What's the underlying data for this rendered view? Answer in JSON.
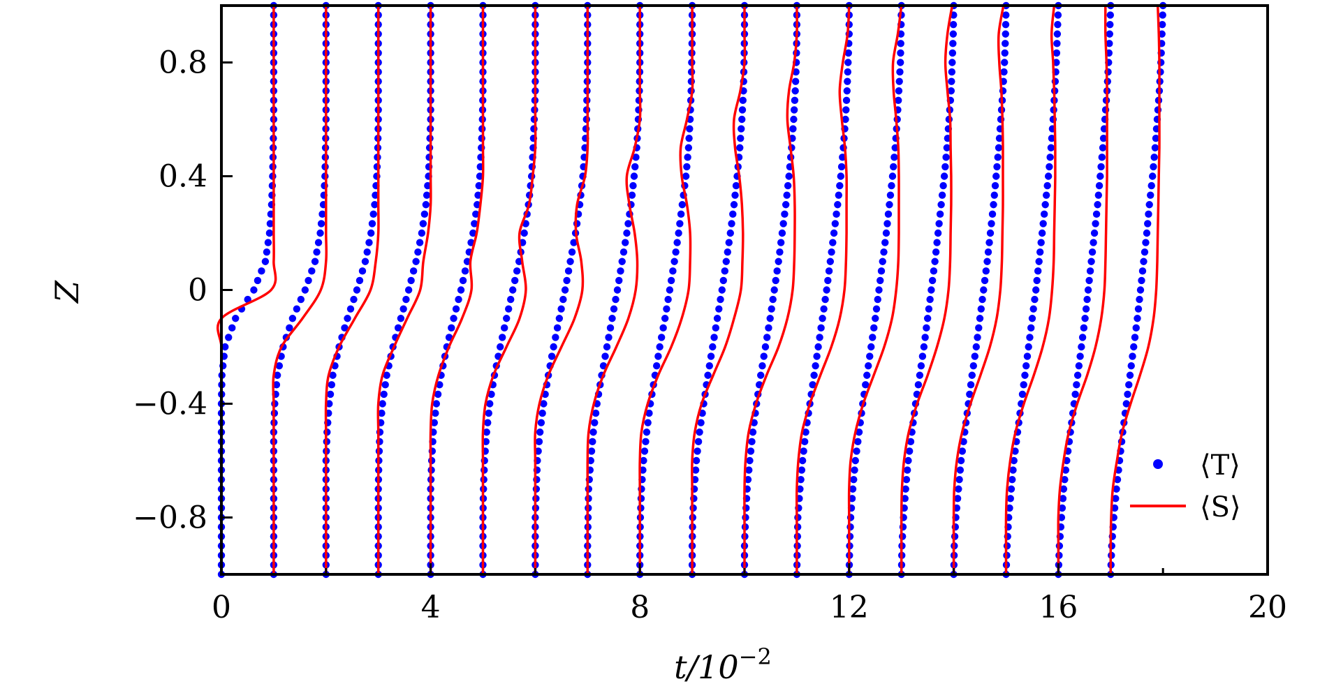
{
  "chart_data": {
    "type": "line",
    "xlabel": "t/10",
    "xlabel_exp": "−2",
    "ylabel": "Z",
    "xlim": [
      0,
      20
    ],
    "ylim": [
      -1,
      1
    ],
    "x_ticks": [
      0,
      4,
      8,
      12,
      16,
      20
    ],
    "x_tick_labels": [
      "0",
      "4",
      "8",
      "12",
      "16",
      "20"
    ],
    "y_ticks": [
      -0.8,
      -0.4,
      0,
      0.4,
      0.8
    ],
    "y_tick_labels": [
      "−0.8",
      "−0.4",
      "0",
      "0.4",
      "0.8"
    ],
    "grid": false,
    "legend_position": "bottom-right",
    "profile_scale": 1,
    "profile_offsets": [
      0,
      1,
      2,
      3,
      4,
      5,
      6,
      7,
      8,
      9,
      10,
      11,
      12,
      13,
      14,
      15,
      16,
      17
    ],
    "z_samples": [
      -1,
      -0.9,
      -0.8,
      -0.7,
      -0.6,
      -0.5,
      -0.4,
      -0.3,
      -0.2,
      -0.1,
      0,
      0.1,
      0.2,
      0.3,
      0.4,
      0.5,
      0.6,
      0.7,
      0.8,
      0.9,
      1
    ],
    "series": [
      {
        "name": "⟨T⟩",
        "style": "dots",
        "color": "#0000ff",
        "profiles": [
          [
            0,
            0,
            0,
            0,
            0,
            0,
            0,
            0.01,
            0.07,
            0.27,
            0.62,
            0.84,
            0.92,
            0.96,
            0.98,
            0.99,
            1,
            1,
            1,
            1,
            1
          ],
          [
            0,
            0,
            0,
            0,
            0,
            0,
            0.02,
            0.07,
            0.18,
            0.36,
            0.6,
            0.79,
            0.89,
            0.95,
            0.98,
            0.99,
            1,
            1,
            1,
            1,
            1
          ],
          [
            0,
            0,
            0,
            0,
            0,
            0.02,
            0.06,
            0.13,
            0.25,
            0.41,
            0.59,
            0.75,
            0.86,
            0.93,
            0.97,
            0.99,
            1,
            1,
            1,
            1,
            1
          ],
          [
            0,
            0,
            0,
            0,
            0.01,
            0.03,
            0.08,
            0.16,
            0.28,
            0.43,
            0.58,
            0.72,
            0.83,
            0.91,
            0.96,
            0.98,
            1,
            1,
            1,
            1,
            1
          ],
          [
            0,
            0,
            0,
            0,
            0.02,
            0.05,
            0.11,
            0.2,
            0.31,
            0.44,
            0.58,
            0.7,
            0.81,
            0.89,
            0.94,
            0.97,
            0.99,
            1,
            1,
            1,
            1
          ],
          [
            0,
            0,
            0,
            0.01,
            0.03,
            0.07,
            0.13,
            0.22,
            0.33,
            0.45,
            0.57,
            0.69,
            0.79,
            0.87,
            0.93,
            0.96,
            0.98,
            1,
            1,
            1,
            1
          ],
          [
            0,
            0,
            0,
            0.02,
            0.04,
            0.09,
            0.16,
            0.25,
            0.35,
            0.46,
            0.57,
            0.67,
            0.77,
            0.85,
            0.91,
            0.95,
            0.98,
            0.99,
            1,
            1,
            1
          ],
          [
            0,
            0,
            0.01,
            0.02,
            0.06,
            0.11,
            0.18,
            0.27,
            0.37,
            0.47,
            0.57,
            0.66,
            0.75,
            0.83,
            0.89,
            0.94,
            0.97,
            0.99,
            1,
            1,
            1
          ],
          [
            0,
            0,
            0.01,
            0.03,
            0.07,
            0.13,
            0.2,
            0.29,
            0.38,
            0.48,
            0.57,
            0.66,
            0.74,
            0.81,
            0.88,
            0.93,
            0.96,
            0.98,
            0.99,
            1,
            1
          ],
          [
            0,
            0,
            0.01,
            0.04,
            0.08,
            0.14,
            0.22,
            0.3,
            0.39,
            0.48,
            0.57,
            0.65,
            0.73,
            0.8,
            0.86,
            0.91,
            0.95,
            0.98,
            0.99,
            1,
            1
          ],
          [
            0,
            0,
            0.02,
            0.05,
            0.1,
            0.16,
            0.23,
            0.31,
            0.4,
            0.49,
            0.57,
            0.65,
            0.72,
            0.79,
            0.85,
            0.9,
            0.94,
            0.97,
            0.99,
            1,
            1
          ],
          [
            0,
            0.01,
            0.02,
            0.06,
            0.11,
            0.17,
            0.25,
            0.33,
            0.41,
            0.49,
            0.57,
            0.64,
            0.71,
            0.78,
            0.84,
            0.89,
            0.93,
            0.96,
            0.98,
            1,
            1
          ],
          [
            0,
            0.01,
            0.03,
            0.07,
            0.12,
            0.19,
            0.26,
            0.34,
            0.42,
            0.5,
            0.57,
            0.64,
            0.71,
            0.77,
            0.83,
            0.88,
            0.92,
            0.95,
            0.98,
            0.99,
            1
          ],
          [
            0,
            0.01,
            0.04,
            0.08,
            0.13,
            0.2,
            0.27,
            0.35,
            0.43,
            0.5,
            0.57,
            0.64,
            0.7,
            0.76,
            0.82,
            0.87,
            0.91,
            0.95,
            0.97,
            0.99,
            1
          ],
          [
            0,
            0.01,
            0.04,
            0.09,
            0.14,
            0.21,
            0.28,
            0.35,
            0.43,
            0.5,
            0.57,
            0.64,
            0.7,
            0.76,
            0.81,
            0.86,
            0.9,
            0.94,
            0.97,
            0.99,
            1
          ],
          [
            0,
            0.02,
            0.05,
            0.1,
            0.15,
            0.22,
            0.29,
            0.36,
            0.43,
            0.5,
            0.57,
            0.63,
            0.69,
            0.75,
            0.81,
            0.86,
            0.9,
            0.93,
            0.96,
            0.98,
            1
          ],
          [
            0,
            0.02,
            0.06,
            0.1,
            0.16,
            0.23,
            0.3,
            0.37,
            0.44,
            0.51,
            0.57,
            0.63,
            0.69,
            0.75,
            0.8,
            0.85,
            0.89,
            0.93,
            0.96,
            0.98,
            1
          ],
          [
            0,
            0.02,
            0.06,
            0.11,
            0.17,
            0.23,
            0.3,
            0.37,
            0.44,
            0.51,
            0.57,
            0.63,
            0.69,
            0.74,
            0.8,
            0.85,
            0.89,
            0.93,
            0.96,
            0.98,
            1
          ]
        ]
      },
      {
        "name": "⟨S⟩",
        "style": "line",
        "color": "#ff0000",
        "profiles": [
          [
            0,
            0,
            0,
            0,
            0,
            0,
            0,
            0,
            0,
            0,
            0.95,
            1,
            1,
            1,
            1,
            1,
            1,
            1,
            1,
            1,
            1
          ],
          [
            0,
            0,
            0,
            0,
            0,
            0,
            0,
            0,
            0.15,
            0.55,
            0.9,
            1,
            1,
            1,
            1,
            1,
            1,
            1,
            1,
            1,
            1
          ],
          [
            0,
            0,
            0,
            0,
            0,
            0,
            0,
            0.05,
            0.25,
            0.55,
            0.85,
            0.95,
            1,
            1,
            1,
            1,
            1,
            1,
            1,
            1,
            1
          ],
          [
            0,
            0,
            0,
            0,
            0,
            0,
            0,
            0.08,
            0.3,
            0.55,
            0.8,
            0.86,
            0.95,
            1,
            1,
            1,
            1,
            1,
            1,
            1,
            1
          ],
          [
            0,
            0,
            0,
            0,
            0,
            0,
            0.03,
            0.15,
            0.35,
            0.6,
            0.78,
            0.76,
            0.88,
            0.95,
            1,
            1,
            1,
            1,
            1,
            1,
            1
          ],
          [
            0,
            0,
            0,
            0,
            0,
            0,
            0.05,
            0.2,
            0.45,
            0.7,
            0.82,
            0.75,
            0.7,
            0.88,
            0.95,
            1,
            1,
            1,
            1,
            1,
            1
          ],
          [
            0,
            0,
            0,
            0,
            0,
            0,
            0.08,
            0.25,
            0.5,
            0.75,
            0.9,
            0.88,
            0.78,
            0.8,
            0.95,
            1,
            1,
            1,
            1,
            1,
            1
          ],
          [
            0,
            0,
            0,
            0,
            0,
            0.02,
            0.12,
            0.3,
            0.55,
            0.78,
            0.92,
            0.95,
            0.9,
            0.8,
            0.75,
            0.9,
            1,
            1,
            1,
            1,
            1
          ],
          [
            0,
            0,
            0,
            0,
            0,
            0.03,
            0.15,
            0.35,
            0.6,
            0.8,
            0.93,
            0.96,
            0.96,
            0.9,
            0.8,
            0.78,
            0.9,
            1,
            1,
            1,
            1
          ],
          [
            0,
            0,
            0,
            0,
            0,
            0.05,
            0.18,
            0.4,
            0.63,
            0.8,
            0.93,
            0.96,
            0.97,
            0.95,
            0.9,
            0.82,
            0.8,
            0.92,
            1,
            1,
            1
          ],
          [
            0,
            0,
            0,
            0,
            0.02,
            0.08,
            0.22,
            0.42,
            0.65,
            0.82,
            0.92,
            0.95,
            0.96,
            0.96,
            0.94,
            0.88,
            0.82,
            0.85,
            0.95,
            1,
            1
          ],
          [
            0,
            0,
            0,
            0,
            0.03,
            0.1,
            0.25,
            0.45,
            0.66,
            0.82,
            0.91,
            0.94,
            0.95,
            0.95,
            0.95,
            0.92,
            0.86,
            0.82,
            0.88,
            0.97,
            1
          ],
          [
            0,
            0,
            0,
            0,
            0.03,
            0.12,
            0.27,
            0.47,
            0.67,
            0.82,
            0.9,
            0.94,
            0.95,
            0.95,
            0.95,
            0.94,
            0.9,
            0.85,
            0.84,
            0.93,
            1
          ],
          [
            0,
            0,
            0,
            0.01,
            0.05,
            0.14,
            0.3,
            0.5,
            0.68,
            0.82,
            0.9,
            0.93,
            0.94,
            0.95,
            0.95,
            0.94,
            0.93,
            0.88,
            0.84,
            0.88,
            0.97
          ],
          [
            0,
            0,
            0,
            0.01,
            0.06,
            0.16,
            0.32,
            0.51,
            0.69,
            0.82,
            0.89,
            0.92,
            0.93,
            0.94,
            0.94,
            0.94,
            0.93,
            0.91,
            0.87,
            0.86,
            0.95
          ],
          [
            0,
            0,
            0,
            0.02,
            0.08,
            0.18,
            0.34,
            0.53,
            0.7,
            0.82,
            0.88,
            0.91,
            0.92,
            0.93,
            0.94,
            0.94,
            0.93,
            0.92,
            0.9,
            0.87,
            0.92
          ],
          [
            0,
            0,
            0,
            0.03,
            0.1,
            0.2,
            0.36,
            0.55,
            0.71,
            0.82,
            0.88,
            0.9,
            0.91,
            0.92,
            0.93,
            0.93,
            0.93,
            0.93,
            0.92,
            0.9,
            0.9
          ],
          [
            0,
            0,
            0.01,
            0.04,
            0.12,
            0.22,
            0.38,
            0.56,
            0.72,
            0.82,
            0.87,
            0.89,
            0.9,
            0.91,
            0.92,
            0.93,
            0.93,
            0.93,
            0.93,
            0.92,
            0.9
          ]
        ]
      }
    ]
  }
}
